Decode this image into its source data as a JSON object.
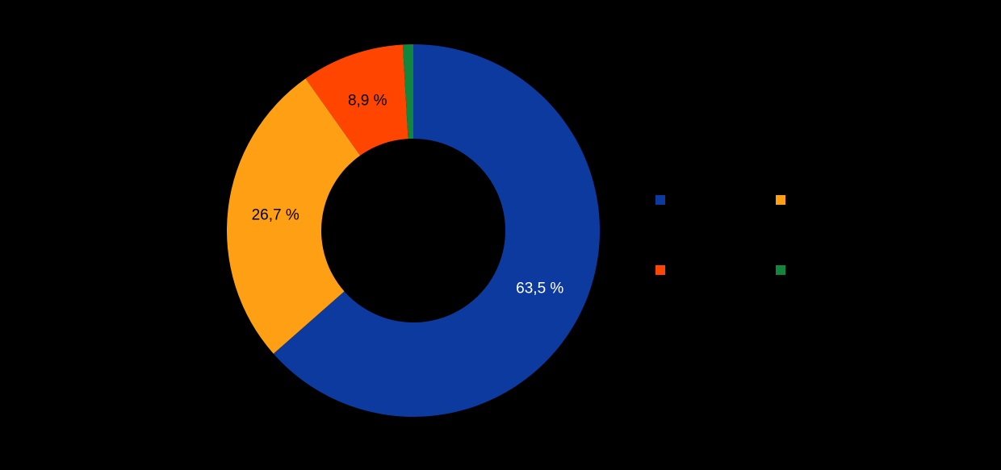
{
  "page": {
    "background_color": "#000000"
  },
  "chart_data": {
    "type": "pie",
    "subtype": "donut",
    "title": "",
    "unit": "%",
    "decimal_separator": ",",
    "direction": "clockwise",
    "start_angle_deg": 0,
    "slices": [
      {
        "value": 63.5,
        "label": "63,5 %",
        "color": "#0D3A9F",
        "label_color": "#FFFFFF"
      },
      {
        "value": 26.7,
        "label": "26,7 %",
        "color": "#FFA014",
        "label_color": "#000000"
      },
      {
        "value": 8.9,
        "label": "8,9 %",
        "color": "#FF4500",
        "label_color": "#000000"
      },
      {
        "value": 0.9,
        "label": "",
        "color": "#12863C",
        "label_color": "#000000"
      }
    ],
    "legend": {
      "position": "right",
      "rows": 2,
      "columns": 2,
      "labels_visible": false,
      "markers": [
        {
          "color": "#0D3A9F"
        },
        {
          "color": "#FFA014"
        },
        {
          "color": "#FF4500"
        },
        {
          "color": "#12863C"
        }
      ]
    }
  }
}
